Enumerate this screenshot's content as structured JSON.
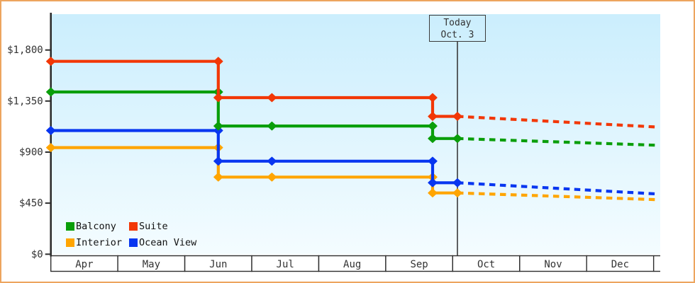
{
  "frame": {
    "background": "#ffffff",
    "border_color": "#eda55f"
  },
  "today_annotation": {
    "line1": "Today",
    "line2": "Oct. 3"
  },
  "legend": {
    "position": "bottom-left",
    "items": [
      {
        "label": "Balcony",
        "series": 0
      },
      {
        "label": "Suite",
        "series": 1
      },
      {
        "label": "Interior",
        "series": 2
      },
      {
        "label": "Ocean View",
        "series": 3
      }
    ]
  },
  "chart_data": {
    "type": "line",
    "title": "",
    "description": "Stepped price history per cabin type with dotted projection after today",
    "x_axis": {
      "unit": "months since Apr 1",
      "tick_labels": [
        "Apr",
        "May",
        "Jun",
        "Jul",
        "Aug",
        "Sep",
        "Oct",
        "Nov",
        "Dec"
      ],
      "xlim": [
        0,
        9.1
      ]
    },
    "y_axis": {
      "unit": "USD",
      "ticks": [
        0,
        450,
        900,
        1350,
        1800
      ],
      "tick_labels": [
        "$0",
        "$450",
        "$900",
        "$1,350",
        "$1,800"
      ],
      "ylim": [
        0,
        2115
      ],
      "grid": false
    },
    "today": {
      "t": 6.07,
      "date_label": "Oct. 3"
    },
    "colors": {
      "axis": "#2e2e2e",
      "today_line": "#3a3a3a",
      "plot_bg_top": "#cbeefd",
      "plot_bg_bottom": "#f4fcff"
    },
    "draw_order": [
      2,
      3,
      0,
      1
    ],
    "series": [
      {
        "name": "Balcony",
        "color": "#0a9e0a",
        "solid": [
          [
            0,
            1430
          ],
          [
            2.5,
            1430
          ],
          [
            2.5,
            1130
          ],
          [
            3.3,
            1130
          ],
          [
            5.7,
            1130
          ],
          [
            5.7,
            1020
          ],
          [
            6.07,
            1020
          ]
        ],
        "projected": [
          [
            6.07,
            1020
          ],
          [
            9.08,
            960
          ]
        ]
      },
      {
        "name": "Suite",
        "color": "#f23706",
        "solid": [
          [
            0,
            1700
          ],
          [
            2.5,
            1700
          ],
          [
            2.5,
            1380
          ],
          [
            3.3,
            1380
          ],
          [
            5.7,
            1380
          ],
          [
            5.7,
            1215
          ],
          [
            6.07,
            1215
          ]
        ],
        "projected": [
          [
            6.07,
            1215
          ],
          [
            9.08,
            1120
          ]
        ]
      },
      {
        "name": "Interior",
        "color": "#ffa500",
        "solid": [
          [
            0,
            940
          ],
          [
            2.5,
            940
          ],
          [
            2.5,
            680
          ],
          [
            3.3,
            680
          ],
          [
            5.7,
            680
          ],
          [
            5.7,
            540
          ],
          [
            6.07,
            540
          ]
        ],
        "projected": [
          [
            6.07,
            540
          ],
          [
            9.08,
            480
          ]
        ]
      },
      {
        "name": "Ocean View",
        "color": "#0836f0",
        "solid": [
          [
            0,
            1090
          ],
          [
            2.5,
            1090
          ],
          [
            2.5,
            820
          ],
          [
            3.3,
            820
          ],
          [
            5.7,
            820
          ],
          [
            5.7,
            630
          ],
          [
            6.07,
            630
          ]
        ],
        "projected": [
          [
            6.07,
            630
          ],
          [
            9.08,
            530
          ]
        ]
      }
    ]
  }
}
